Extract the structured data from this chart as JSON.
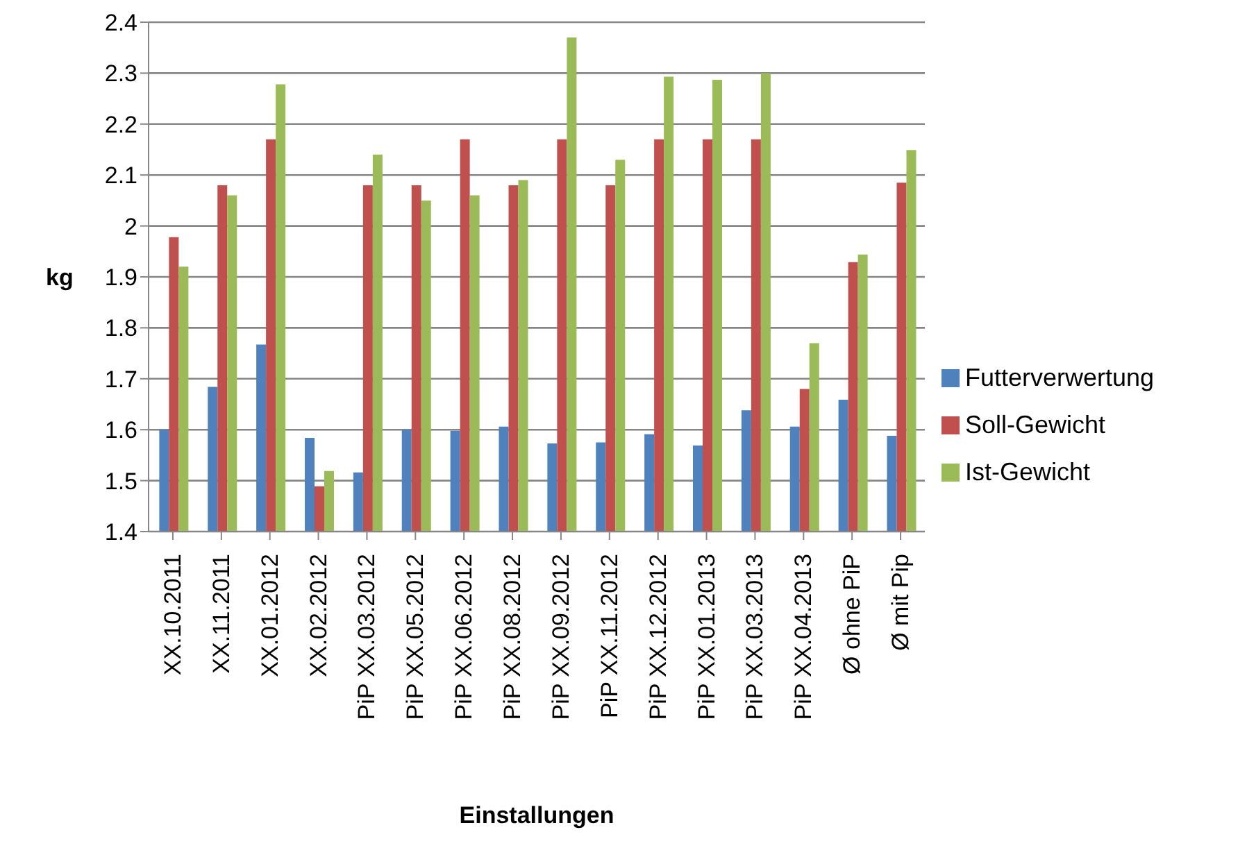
{
  "chart_data": {
    "type": "bar",
    "xlabel": "Einstallungen",
    "ylabel": "kg",
    "categories": [
      "XX.10.2011",
      "XX.11.2011",
      "XX.01.2012",
      "XX.02.2012",
      "PiP XX.03.2012",
      "PiP XX.05.2012",
      "PiP XX.06.2012",
      "PiP XX.08.2012",
      "PiP XX.09.2012",
      "PiP XX.11.2012",
      "PiP XX.12.2012",
      "PiP XX.01.2013",
      "PiP XX.03.2013",
      "PiP XX.04.2013",
      "Ø ohne PiP",
      "Ø mit Pip"
    ],
    "series": [
      {
        "name": "Futterverwertung",
        "color": "#4f81bd",
        "values": [
          1.6,
          1.684,
          1.767,
          1.584,
          1.516,
          1.6,
          1.598,
          1.606,
          1.573,
          1.575,
          1.591,
          1.569,
          1.638,
          1.606,
          1.659,
          1.588
        ]
      },
      {
        "name": "Soll-Gewicht",
        "color": "#c0504d",
        "values": [
          1.978,
          2.08,
          2.17,
          1.489,
          2.08,
          2.08,
          2.17,
          2.08,
          2.17,
          2.08,
          2.17,
          2.17,
          2.17,
          1.68,
          1.929,
          2.085
        ]
      },
      {
        "name": "Ist-Gewicht",
        "color": "#9bbb59",
        "values": [
          1.92,
          2.06,
          2.278,
          1.519,
          2.14,
          2.05,
          2.06,
          2.09,
          2.37,
          2.13,
          2.293,
          2.287,
          2.3,
          1.77,
          1.944,
          2.149
        ]
      }
    ],
    "ylim": [
      1.4,
      2.4
    ],
    "yticks": [
      1.4,
      1.5,
      1.6,
      1.7,
      1.8,
      1.9,
      2,
      2.1,
      2.2,
      2.3,
      2.4
    ],
    "grid": "y",
    "legend": "right"
  }
}
